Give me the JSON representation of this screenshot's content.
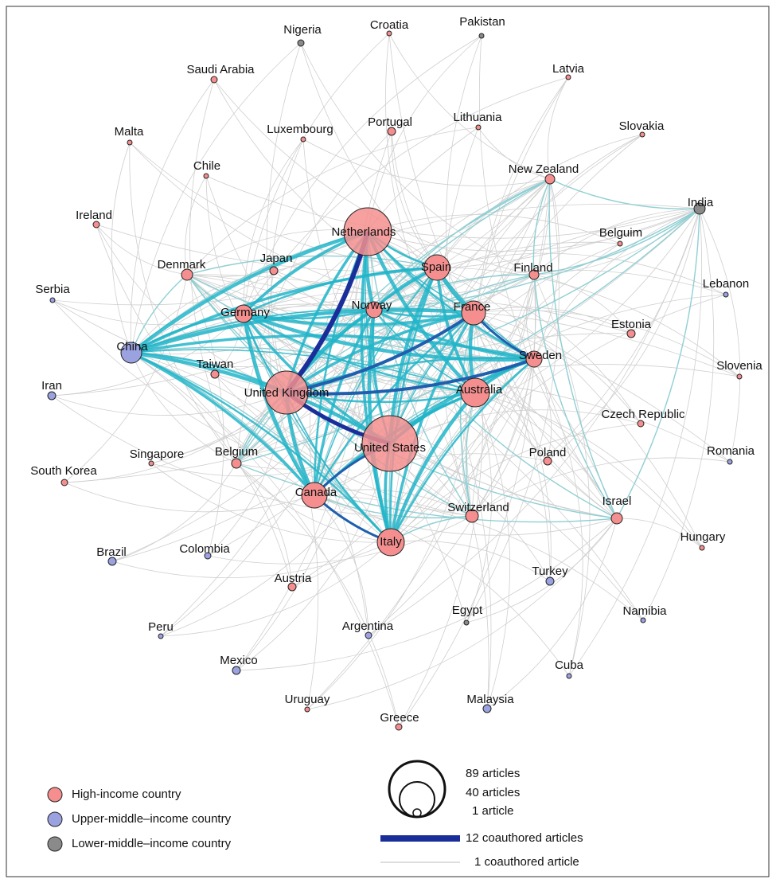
{
  "groups": [
    {
      "label": "High-income country",
      "nodes": [
        "Croatia",
        "Saudi Arabia",
        "Latvia",
        "Malta",
        "Luxembourg",
        "Portugal",
        "Lithuania",
        "Slovakia",
        "Chile",
        "New Zealand",
        "Ireland",
        "Belguim",
        "Netherlands",
        "Spain",
        "Finland",
        "Denmark",
        "Japan",
        "Germany",
        "Norway",
        "France",
        "Estonia",
        "Sweden",
        "Slovenia",
        "Taiwan",
        "United Kingdom",
        "Australia",
        "Czech Republic",
        "United States",
        "Singapore",
        "South Korea",
        "Belgium",
        "Poland",
        "Canada",
        "Switzerland",
        "Israel",
        "Italy",
        "Hungary",
        "Austria",
        "Uruguay",
        "Greece"
      ]
    },
    {
      "label": "Upper-middle–income country",
      "nodes": [
        "Serbia",
        "China",
        "Iran",
        "Brazil",
        "Colombia",
        "Turkey",
        "Romania",
        "Lebanon",
        "Namibia",
        "Peru",
        "Argentina",
        "Mexico",
        "Cuba",
        "Malaysia"
      ]
    },
    {
      "label": "Lower-middle–income country",
      "nodes": [
        "Nigeria",
        "Pakistan",
        "India",
        "Egypt"
      ]
    }
  ],
  "size_legend": [
    "89 articles",
    "40 articles",
    "1 article"
  ],
  "edge_legend": [
    "12 coauthored articles",
    "1 coauthored article"
  ]
}
